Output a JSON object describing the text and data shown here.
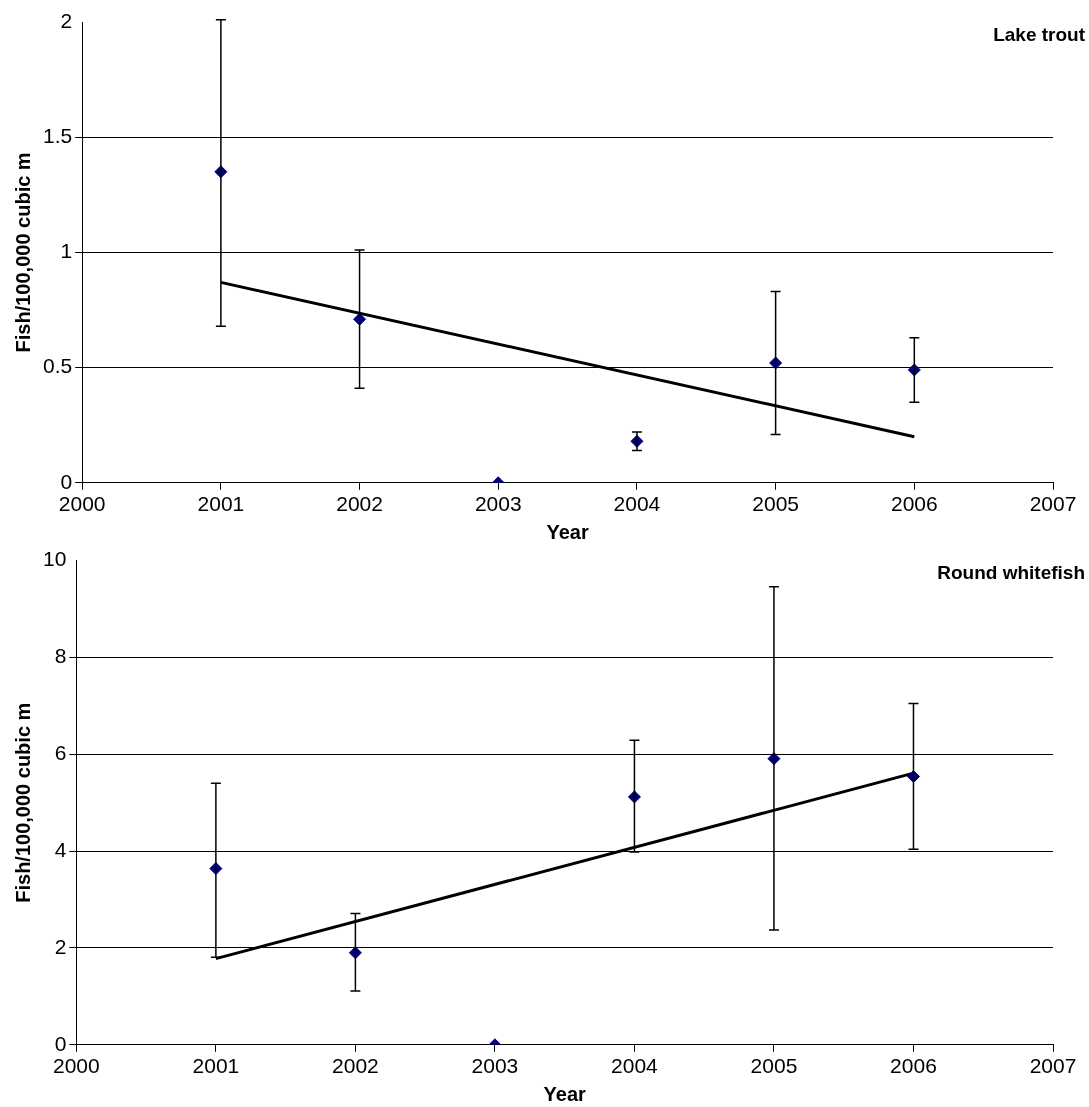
{
  "chart_data": [
    {
      "type": "scatter",
      "title": "Lake trout",
      "xlabel": "Year",
      "ylabel": "Fish/100,000 cubic m",
      "xlim": [
        2000,
        2007
      ],
      "xticks": [
        2000,
        2001,
        2002,
        2003,
        2004,
        2005,
        2006,
        2007
      ],
      "ylim": [
        0,
        2
      ],
      "yticks": [
        0,
        0.5,
        1,
        1.5,
        2
      ],
      "grid": "y",
      "legend": false,
      "series": [
        {
          "marker": "diamond",
          "color": "#000080",
          "x": [
            2001,
            2002,
            2003,
            2004,
            2005,
            2006
          ],
          "values": [
            1.35,
            0.71,
            0,
            0.18,
            0.52,
            0.49
          ],
          "errors": [
            [
              0.68,
              2.01
            ],
            [
              0.41,
              1.01
            ],
            null,
            [
              0.14,
              0.22
            ],
            [
              0.21,
              0.83
            ],
            [
              0.35,
              0.63
            ]
          ]
        },
        {
          "type": "line",
          "marker": "none",
          "color": "#000000",
          "x": [
            2001,
            2006
          ],
          "values": [
            0.87,
            0.2
          ]
        }
      ]
    },
    {
      "type": "scatter",
      "title": "Round whitefish",
      "xlabel": "Year",
      "ylabel": "Fish/100,000 cubic m",
      "xlim": [
        2000,
        2007
      ],
      "xticks": [
        2000,
        2001,
        2002,
        2003,
        2004,
        2005,
        2006,
        2007
      ],
      "ylim": [
        0,
        10
      ],
      "yticks": [
        0,
        2,
        4,
        6,
        8,
        10
      ],
      "grid": "y",
      "legend": false,
      "series": [
        {
          "marker": "diamond",
          "color": "#000080",
          "x": [
            2001,
            2002,
            2003,
            2004,
            2005,
            2006
          ],
          "values": [
            3.64,
            1.9,
            0,
            5.12,
            5.91,
            5.54
          ],
          "errors": [
            [
              1.81,
              5.4
            ],
            [
              1.11,
              2.71
            ],
            null,
            [
              3.98,
              6.29
            ],
            [
              2.37,
              9.46
            ],
            [
              4.04,
              7.05
            ]
          ]
        },
        {
          "type": "line",
          "marker": "none",
          "color": "#000000",
          "x": [
            2001,
            2006
          ],
          "values": [
            1.78,
            5.61
          ]
        }
      ]
    }
  ]
}
